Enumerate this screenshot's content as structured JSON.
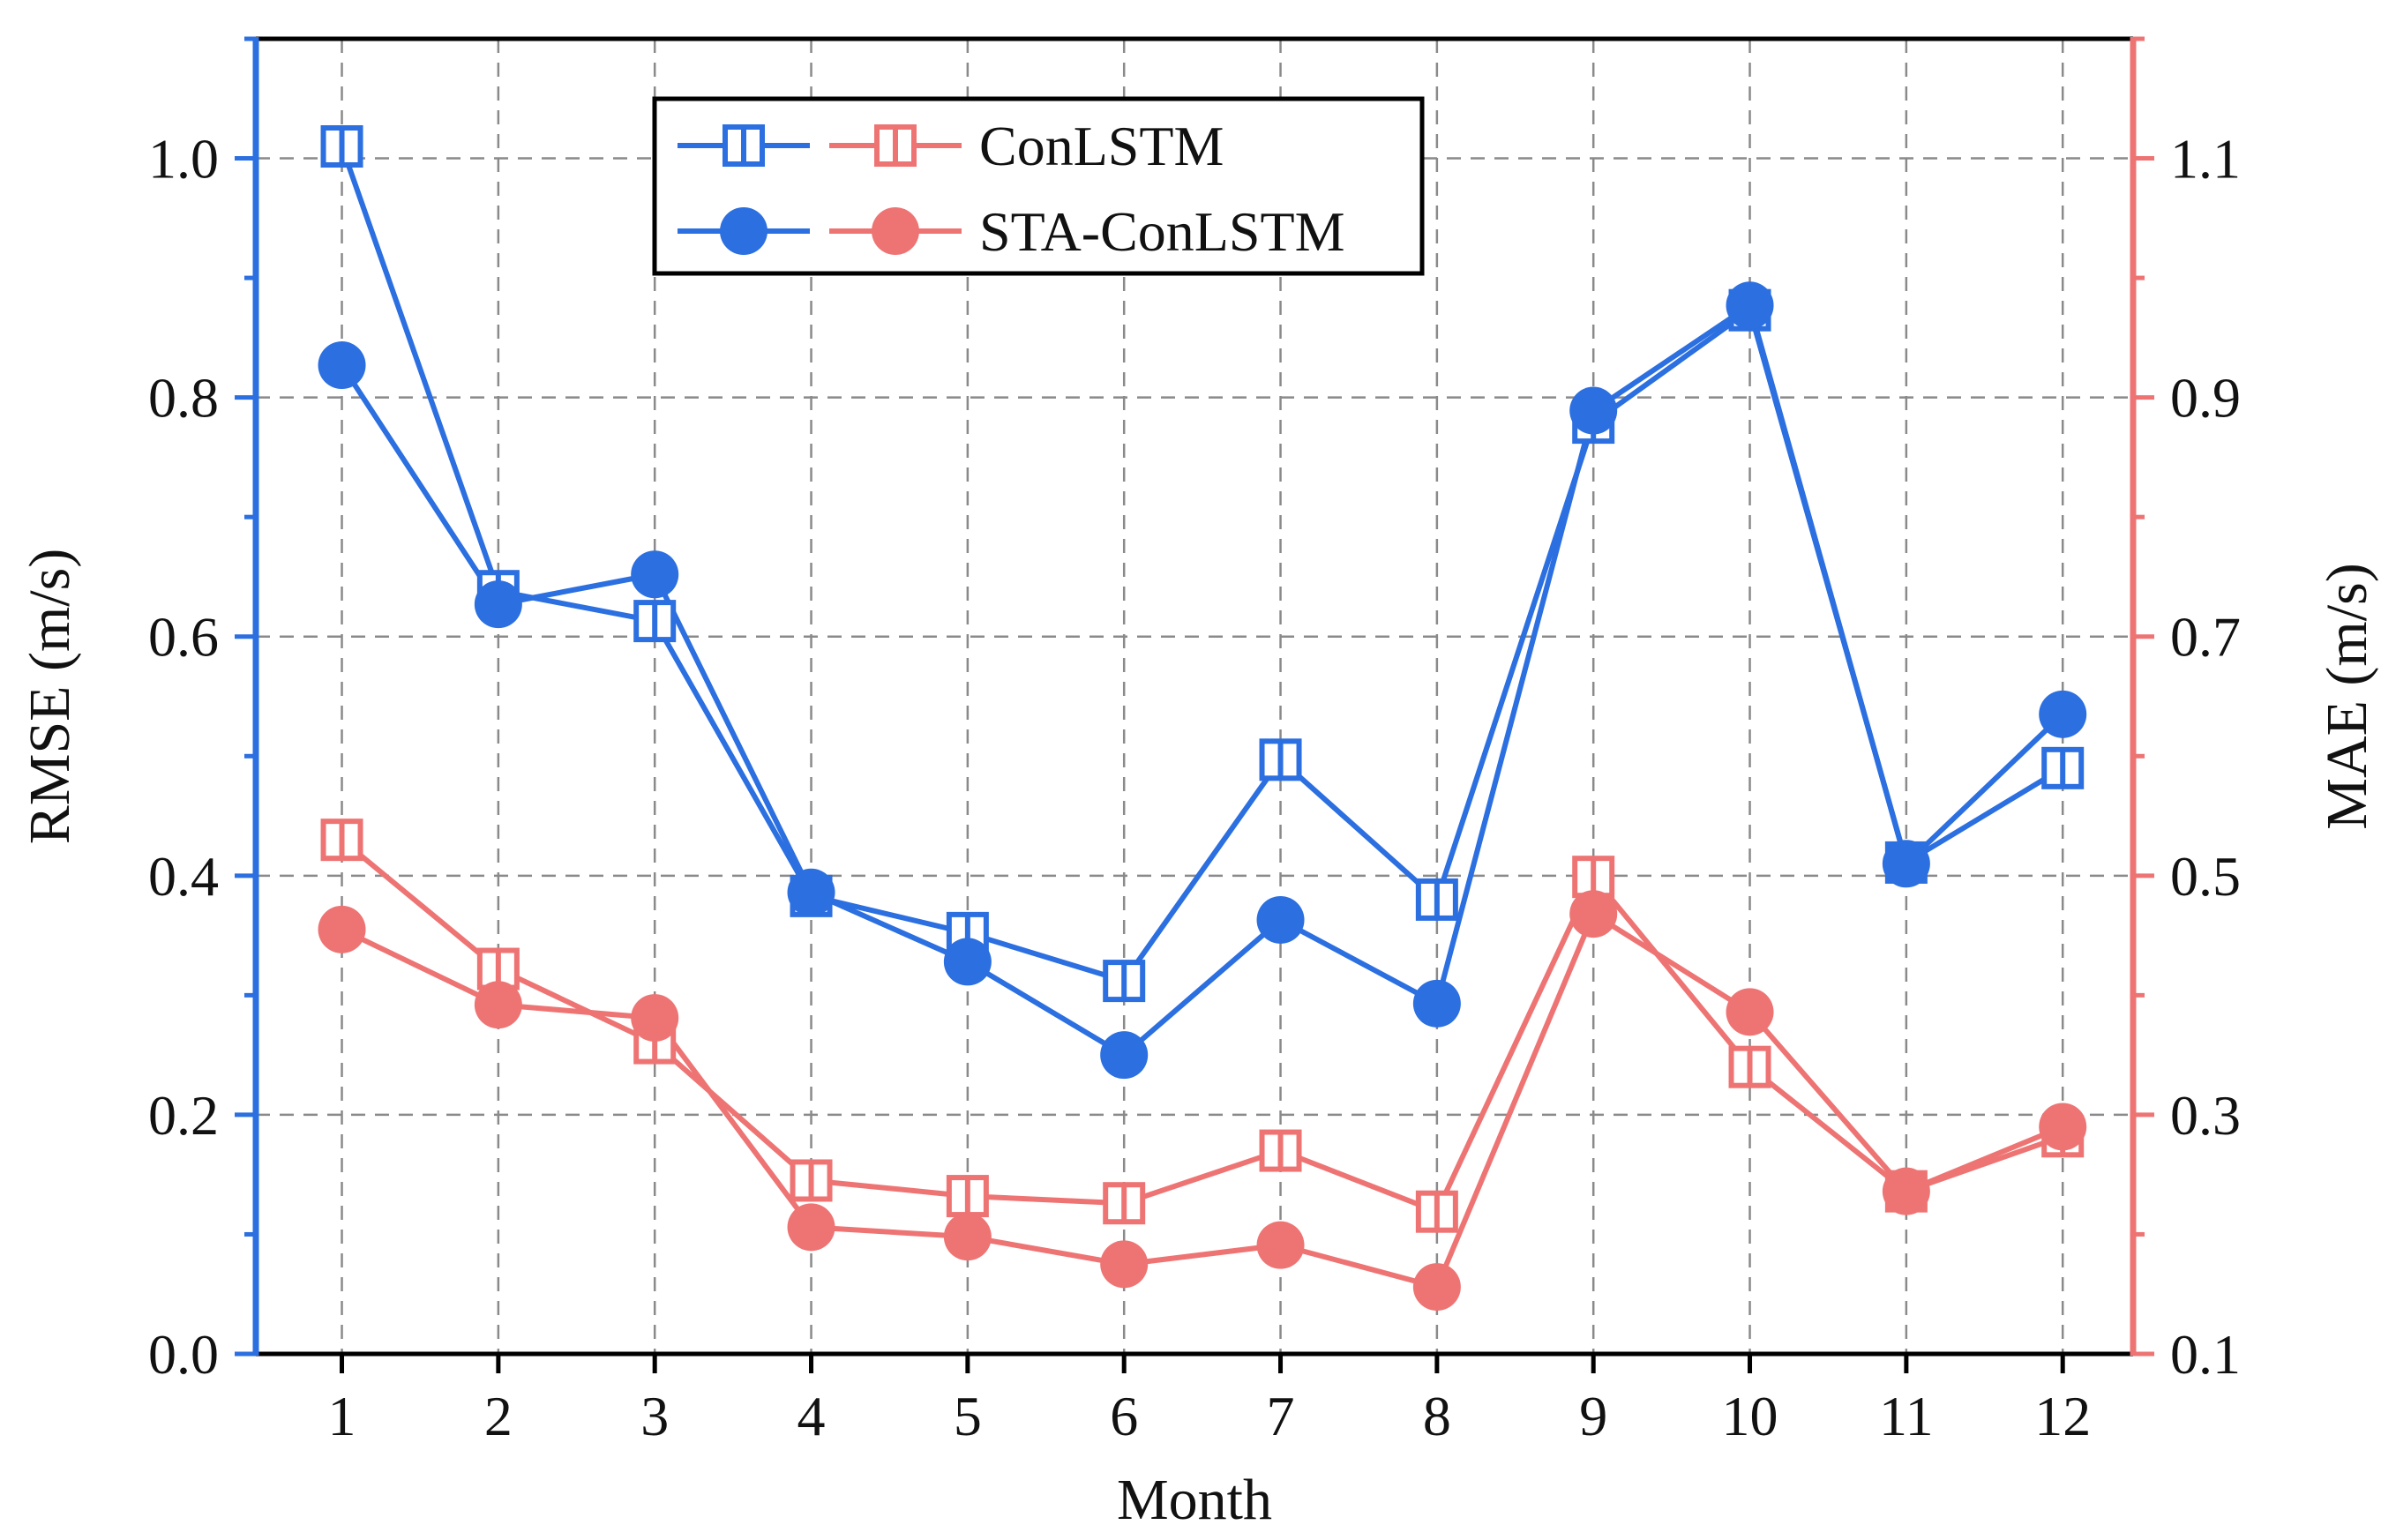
{
  "chart_data": {
    "type": "line",
    "title": "",
    "xlabel": "Month",
    "ylabel_left": "RMSE (m/s)",
    "ylabel_right": "MAE (m/s)",
    "x": [
      1,
      2,
      3,
      4,
      5,
      6,
      7,
      8,
      9,
      10,
      11,
      12
    ],
    "x_tick_labels": [
      "1",
      "2",
      "3",
      "4",
      "5",
      "6",
      "7",
      "8",
      "9",
      "10",
      "11",
      "12"
    ],
    "xlim": [
      0.45,
      12.45
    ],
    "ylim_left": [
      0.0,
      1.1
    ],
    "ylim_right": [
      0.1,
      1.2
    ],
    "y_ticks_left": [
      0.0,
      0.2,
      0.4,
      0.6,
      0.8,
      1.0
    ],
    "y_tick_labels_left": [
      "0.0",
      "0.2",
      "0.4",
      "0.6",
      "0.8",
      "1.0"
    ],
    "y_ticks_right": [
      0.1,
      0.3,
      0.5,
      0.7,
      0.9,
      1.1
    ],
    "y_tick_labels_right": [
      "0.1",
      "0.3",
      "0.5",
      "0.7",
      "0.9",
      "1.1"
    ],
    "grid": true,
    "legend": {
      "position": "top-left",
      "entries": [
        "ConLSTM",
        "STA-ConLSTM"
      ]
    },
    "colors": {
      "rmse": "#2b6fe0",
      "mae": "#ee7474",
      "grid": "#8a8a8a",
      "frame": "#000000"
    },
    "series": [
      {
        "name": "ConLSTM",
        "metric": "RMSE",
        "axis": "left",
        "marker": "square-hollow",
        "values": [
          1.01,
          0.638,
          0.613,
          0.383,
          0.352,
          0.312,
          0.497,
          0.38,
          0.779,
          0.873,
          0.411,
          0.49
        ]
      },
      {
        "name": "STA-ConLSTM",
        "metric": "RMSE",
        "axis": "left",
        "marker": "circle-filled",
        "values": [
          0.827,
          0.627,
          0.652,
          0.386,
          0.328,
          0.25,
          0.363,
          0.293,
          0.789,
          0.877,
          0.41,
          0.535
        ]
      },
      {
        "name": "ConLSTM",
        "metric": "MAE",
        "axis": "right",
        "marker": "square-hollow",
        "values": [
          0.53,
          0.422,
          0.36,
          0.245,
          0.232,
          0.226,
          0.27,
          0.219,
          0.499,
          0.34,
          0.236,
          0.282
        ]
      },
      {
        "name": "STA-ConLSTM",
        "metric": "MAE",
        "axis": "right",
        "marker": "circle-filled",
        "values": [
          0.455,
          0.392,
          0.381,
          0.206,
          0.198,
          0.175,
          0.191,
          0.156,
          0.468,
          0.386,
          0.236,
          0.29
        ]
      }
    ]
  }
}
